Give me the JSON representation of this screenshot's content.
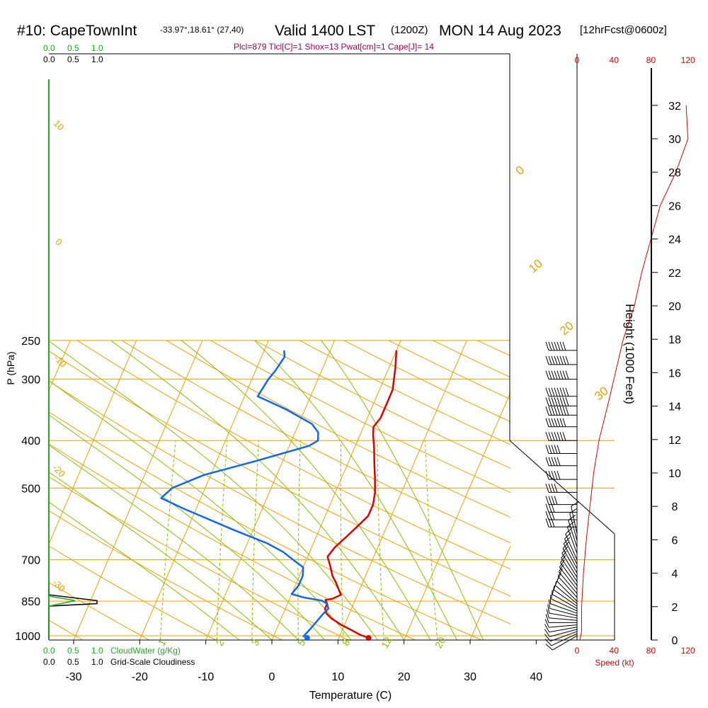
{
  "header": {
    "station": "#10: CapeTownInt",
    "coords": "-33.97°,18.61° (27,40)",
    "valid": "Valid 1400 LST",
    "zulu": "(1200Z)",
    "date": "MON 14 Aug 2023",
    "fcst": "[12hrFcst@0600z]",
    "indices": "Plcl=879 Tlcl[C]=1 Shox=13 Pwat[cm]=1 Cape[J]= 14"
  },
  "colors": {
    "temperature": "#dd0000",
    "dewpoint": "#1166ee",
    "isotherm": "#f0a000",
    "dry_adiabat": "#f0a000",
    "moist_adiabat": "#88c000",
    "mixing_ratio": "#88c000",
    "speed_axis": "#dd0000",
    "cloudwater": "#22aa22",
    "indices": "#aa0044"
  },
  "cloud_scales": {
    "top_cloudwater": [
      "0.0",
      "0.5",
      "1.0"
    ],
    "top_cloudiness": [
      "0.0",
      "0.5",
      "1.0"
    ],
    "bottom_cloudwater": [
      "0.0",
      "0.5",
      "1.0"
    ],
    "bottom_cloudwater_label": "CloudWater (g/Kg)",
    "bottom_cloudiness": [
      "0.0",
      "0.5",
      "1.0"
    ],
    "bottom_cloudiness_label": "Grid-Scale Cloudiness"
  },
  "chart_data": {
    "type": "line",
    "xlabel": "Temperature (C)",
    "ylabel": "P (hPa)",
    "x_ticks": [
      -30,
      -20,
      -10,
      0,
      10,
      20,
      30,
      40
    ],
    "p_ticks": [
      250,
      300,
      400,
      500,
      700,
      850,
      1000
    ],
    "xlim": [
      -34,
      52
    ],
    "plim": [
      1020,
      250
    ],
    "series": [
      {
        "key": "temperature",
        "points": [
          [
            14.5,
            1010
          ],
          [
            13,
            995
          ],
          [
            11.5,
            975
          ],
          [
            9.5,
            950
          ],
          [
            7.5,
            920
          ],
          [
            6.5,
            900
          ],
          [
            6,
            880
          ],
          [
            6,
            860
          ],
          [
            5.5,
            845
          ],
          [
            6.5,
            840
          ],
          [
            7.5,
            825
          ],
          [
            7,
            810
          ],
          [
            6,
            780
          ],
          [
            5,
            755
          ],
          [
            4,
            720
          ],
          [
            3,
            690
          ],
          [
            3.5,
            660
          ],
          [
            4.5,
            630
          ],
          [
            5.5,
            600
          ],
          [
            6.5,
            570
          ],
          [
            6.5,
            540
          ],
          [
            6,
            510
          ],
          [
            5,
            475
          ],
          [
            4,
            445
          ],
          [
            3,
            415
          ],
          [
            2,
            390
          ],
          [
            1.5,
            375
          ],
          [
            2,
            360
          ],
          [
            2,
            335
          ],
          [
            2,
            315
          ],
          [
            1.5,
            300
          ],
          [
            1,
            285
          ],
          [
            0,
            262
          ]
        ]
      },
      {
        "key": "dewpoint",
        "points": [
          [
            4.5,
            1005
          ],
          [
            5,
            975
          ],
          [
            5.5,
            940
          ],
          [
            6,
            905
          ],
          [
            6.5,
            880
          ],
          [
            6,
            860
          ],
          [
            5,
            848
          ],
          [
            2,
            835
          ],
          [
            0,
            822
          ],
          [
            0.5,
            790
          ],
          [
            0.5,
            755
          ],
          [
            0,
            725
          ],
          [
            -2,
            700
          ],
          [
            -4,
            675
          ],
          [
            -7,
            648
          ],
          [
            -13,
            608
          ],
          [
            -18,
            575
          ],
          [
            -22,
            550
          ],
          [
            -26,
            524
          ],
          [
            -25,
            500
          ],
          [
            -21,
            470
          ],
          [
            -14,
            440
          ],
          [
            -7,
            410
          ],
          [
            -6,
            400
          ],
          [
            -6.5,
            385
          ],
          [
            -8,
            370
          ],
          [
            -13,
            345
          ],
          [
            -18,
            325
          ],
          [
            -17.5,
            300
          ],
          [
            -17,
            288
          ],
          [
            -16.5,
            270
          ],
          [
            -17,
            262
          ]
        ]
      }
    ],
    "surface_points": {
      "temperature": 14.5,
      "dewpoint": 5.2,
      "pressure": 1010
    },
    "isotherm_labels": [
      "0",
      "10",
      "20",
      "30"
    ],
    "isotherm_label_temps": [
      0,
      10,
      20,
      30
    ],
    "dry_adiabat_labels": [
      "10",
      "0",
      "-10",
      "-20",
      "-30"
    ],
    "dry_adiabat_label_temps": [
      10,
      0,
      -10,
      -20,
      -30
    ],
    "mixing_ratio_labels": [
      "1",
      "2",
      "3",
      "5",
      "8",
      "12",
      "20"
    ],
    "mixing_ratio_values": [
      1,
      2,
      3,
      5,
      8,
      12,
      20
    ],
    "moist_adiabat_starts": [
      -5,
      0,
      4,
      8,
      12,
      16,
      20,
      24,
      28,
      32
    ],
    "height_axis": {
      "label": "Height (1000 Feet)",
      "ticks": [
        0,
        2,
        4,
        6,
        8,
        10,
        12,
        14,
        16,
        18,
        20,
        22,
        24,
        26,
        28,
        30,
        32
      ]
    },
    "speed_axis": {
      "label": "Speed (kt)",
      "ticks": [
        0,
        40,
        80,
        120
      ]
    },
    "wind_speed_profile": [
      [
        3,
        0
      ],
      [
        5,
        0.5
      ],
      [
        5,
        2
      ],
      [
        7,
        4
      ],
      [
        10,
        6
      ],
      [
        14,
        8
      ],
      [
        18,
        10
      ],
      [
        24,
        12
      ],
      [
        33,
        14
      ],
      [
        50,
        18
      ],
      [
        62,
        20
      ],
      [
        70,
        22
      ],
      [
        90,
        26
      ],
      [
        107,
        28
      ],
      [
        120,
        30
      ],
      [
        118,
        32
      ]
    ],
    "wind_barbs": [
      {
        "p": 1000,
        "dir": 240,
        "spd": 10
      },
      {
        "p": 990,
        "dir": 245,
        "spd": 10
      },
      {
        "p": 980,
        "dir": 250,
        "spd": 10
      },
      {
        "p": 970,
        "dir": 255,
        "spd": 10
      },
      {
        "p": 960,
        "dir": 260,
        "spd": 10
      },
      {
        "p": 950,
        "dir": 265,
        "spd": 10
      },
      {
        "p": 940,
        "dir": 270,
        "spd": 10
      },
      {
        "p": 930,
        "dir": 275,
        "spd": 10
      },
      {
        "p": 920,
        "dir": 280,
        "spd": 10
      },
      {
        "p": 910,
        "dir": 285,
        "spd": 10
      },
      {
        "p": 900,
        "dir": 290,
        "spd": 10
      },
      {
        "p": 890,
        "dir": 295,
        "spd": 10
      },
      {
        "p": 880,
        "dir": 300,
        "spd": 10
      },
      {
        "p": 870,
        "dir": 305,
        "spd": 10
      },
      {
        "p": 860,
        "dir": 310,
        "spd": 10
      },
      {
        "p": 850,
        "dir": 315,
        "spd": 10
      },
      {
        "p": 835,
        "dir": 318,
        "spd": 10
      },
      {
        "p": 820,
        "dir": 320,
        "spd": 10
      },
      {
        "p": 805,
        "dir": 322,
        "spd": 10
      },
      {
        "p": 790,
        "dir": 324,
        "spd": 10
      },
      {
        "p": 775,
        "dir": 326,
        "spd": 10
      },
      {
        "p": 760,
        "dir": 328,
        "spd": 10
      },
      {
        "p": 745,
        "dir": 330,
        "spd": 10
      },
      {
        "p": 730,
        "dir": 332,
        "spd": 10
      },
      {
        "p": 715,
        "dir": 334,
        "spd": 10
      },
      {
        "p": 700,
        "dir": 336,
        "spd": 10
      },
      {
        "p": 680,
        "dir": 340,
        "spd": 10
      },
      {
        "p": 660,
        "dir": 342,
        "spd": 10
      },
      {
        "p": 640,
        "dir": 345,
        "spd": 10
      },
      {
        "p": 620,
        "dir": 348,
        "spd": 10
      },
      {
        "p": 600,
        "dir": 270,
        "spd": 35
      },
      {
        "p": 580,
        "dir": 270,
        "spd": 35
      },
      {
        "p": 560,
        "dir": 270,
        "spd": 35
      },
      {
        "p": 540,
        "dir": 270,
        "spd": 40
      },
      {
        "p": 510,
        "dir": 270,
        "spd": 45
      },
      {
        "p": 480,
        "dir": 270,
        "spd": 50
      },
      {
        "p": 450,
        "dir": 270,
        "spd": 50
      },
      {
        "p": 425,
        "dir": 270,
        "spd": 55
      },
      {
        "p": 400,
        "dir": 270,
        "spd": 70
      },
      {
        "p": 375,
        "dir": 270,
        "spd": 75
      },
      {
        "p": 355,
        "dir": 270,
        "spd": 80
      },
      {
        "p": 340,
        "dir": 270,
        "spd": 80
      },
      {
        "p": 325,
        "dir": 270,
        "spd": 85
      },
      {
        "p": 300,
        "dir": 270,
        "spd": 80
      },
      {
        "p": 280,
        "dir": 270,
        "spd": 80
      },
      {
        "p": 262,
        "dir": 270,
        "spd": 75
      }
    ],
    "cloudwater_profile": [
      [
        0,
        1020
      ],
      [
        0,
        870
      ],
      [
        0.55,
        848
      ],
      [
        0,
        830
      ],
      [
        0,
        780
      ]
    ],
    "cloudiness_profile": [
      [
        0,
        1020
      ],
      [
        0,
        870
      ],
      [
        1.0,
        860
      ],
      [
        1.0,
        848
      ],
      [
        0,
        825
      ],
      [
        0,
        780
      ]
    ]
  }
}
